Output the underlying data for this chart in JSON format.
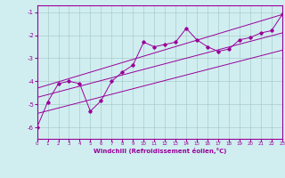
{
  "title": "",
  "xlabel": "Windchill (Refroidissement éolien,°C)",
  "background_color": "#d0eef0",
  "grid_color": "#aacccc",
  "line_color": "#990099",
  "xlim": [
    0,
    23
  ],
  "ylim": [
    -6.5,
    -0.7
  ],
  "yticks": [
    -6,
    -5,
    -4,
    -3,
    -2,
    -1
  ],
  "xticks": [
    0,
    1,
    2,
    3,
    4,
    5,
    6,
    7,
    8,
    9,
    10,
    11,
    12,
    13,
    14,
    15,
    16,
    17,
    18,
    19,
    20,
    21,
    22,
    23
  ],
  "data_points": [
    [
      0,
      -6.0
    ],
    [
      1,
      -4.9
    ],
    [
      2,
      -4.1
    ],
    [
      3,
      -4.0
    ],
    [
      4,
      -4.1
    ],
    [
      5,
      -5.3
    ],
    [
      6,
      -4.85
    ],
    [
      7,
      -4.0
    ],
    [
      8,
      -3.6
    ],
    [
      9,
      -3.3
    ],
    [
      10,
      -2.3
    ],
    [
      11,
      -2.5
    ],
    [
      12,
      -2.4
    ],
    [
      13,
      -2.3
    ],
    [
      14,
      -1.7
    ],
    [
      15,
      -2.2
    ],
    [
      16,
      -2.5
    ],
    [
      17,
      -2.7
    ],
    [
      18,
      -2.6
    ],
    [
      19,
      -2.2
    ],
    [
      20,
      -2.1
    ],
    [
      21,
      -1.9
    ],
    [
      22,
      -1.8
    ],
    [
      23,
      -1.1
    ]
  ],
  "regression_line": [
    [
      0,
      -4.7
    ],
    [
      23,
      -1.9
    ]
  ],
  "upper_line": [
    [
      0,
      -4.3
    ],
    [
      23,
      -1.1
    ]
  ],
  "lower_line": [
    [
      0,
      -5.4
    ],
    [
      23,
      -2.65
    ]
  ]
}
